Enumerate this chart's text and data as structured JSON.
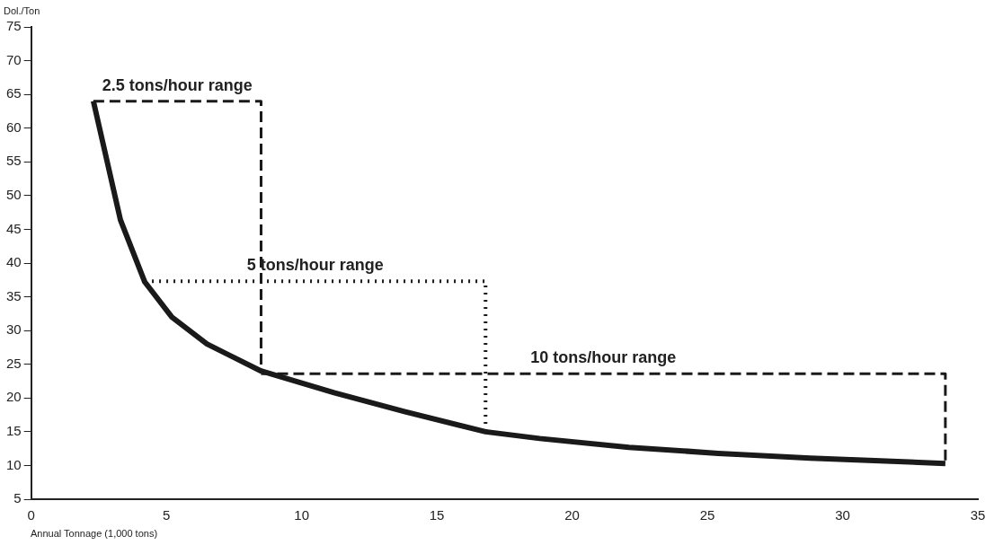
{
  "chart_data": {
    "type": "line",
    "xlabel": "Annual Tonnage (1,000 tons)",
    "ylabel": "Dol./Ton",
    "xlim": [
      0,
      35
    ],
    "xticks": [
      0,
      5,
      10,
      15,
      20,
      25,
      30,
      35
    ],
    "ylim": [
      5,
      75
    ],
    "yticks": [
      5,
      10,
      15,
      20,
      25,
      30,
      35,
      40,
      45,
      50,
      55,
      60,
      65,
      70,
      75
    ],
    "grid": false,
    "legend": false,
    "marker": "none",
    "series": [
      {
        "color": "#1a1a1a",
        "line_style": "solid",
        "x": [
          2.3,
          3.3,
          4.2,
          5.2,
          6.5,
          8.5,
          11.2,
          13.8,
          16.8,
          18.8,
          22.1,
          25.4,
          28.8,
          33.8
        ],
        "values": [
          64,
          46.4,
          37.2,
          32,
          28,
          24,
          20.8,
          18,
          15,
          14,
          12.7,
          11.8,
          11.1,
          10.3
        ]
      },
      {
        "name": "2.5 tons/hour range",
        "color": "#1a1a1a",
        "line_style": "dashed",
        "x": [
          2.3,
          8.5,
          8.5
        ],
        "values": [
          64,
          64,
          24
        ]
      },
      {
        "name": "5 tons/hour range",
        "color": "#1a1a1a",
        "line_style": "dotted",
        "x": [
          4.2,
          16.8,
          16.8
        ],
        "values": [
          37.3,
          37.3,
          14.6
        ]
      },
      {
        "name": "10 tons/hour range",
        "color": "#1a1a1a",
        "line_style": "dashed",
        "x": [
          8.5,
          33.8,
          33.8
        ],
        "values": [
          23.6,
          23.6,
          10
        ]
      }
    ]
  }
}
